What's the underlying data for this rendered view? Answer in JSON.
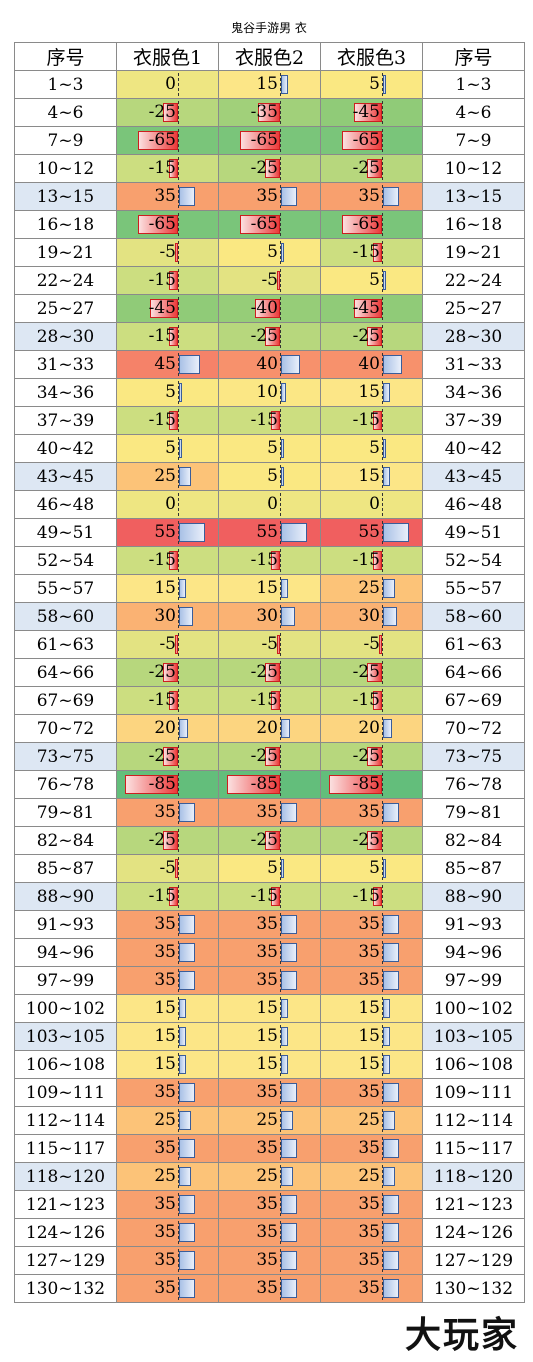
{
  "title": "鬼谷手游男 衣",
  "watermark": "大玩家",
  "headers": [
    "序号",
    "衣服色1",
    "衣服色2",
    "衣服色3",
    "序号"
  ],
  "colors": {
    "positive_bar": "#a9c1e6",
    "negative_bar": "#ec3a3a",
    "alt_row": "#dde7f3"
  },
  "rows": [
    {
      "range": "1~3",
      "v": [
        0,
        15,
        5
      ]
    },
    {
      "range": "4~6",
      "v": [
        -25,
        -35,
        -45
      ]
    },
    {
      "range": "7~9",
      "v": [
        -65,
        -65,
        -65
      ]
    },
    {
      "range": "10~12",
      "v": [
        -15,
        -25,
        -25
      ]
    },
    {
      "range": "13~15",
      "v": [
        35,
        35,
        35
      ]
    },
    {
      "range": "16~18",
      "v": [
        -65,
        -65,
        -65
      ]
    },
    {
      "range": "19~21",
      "v": [
        -5,
        5,
        -15
      ]
    },
    {
      "range": "22~24",
      "v": [
        -15,
        -5,
        5
      ]
    },
    {
      "range": "25~27",
      "v": [
        -45,
        -40,
        -45
      ]
    },
    {
      "range": "28~30",
      "v": [
        -15,
        -25,
        -25
      ]
    },
    {
      "range": "31~33",
      "v": [
        45,
        40,
        40
      ]
    },
    {
      "range": "34~36",
      "v": [
        5,
        10,
        15
      ]
    },
    {
      "range": "37~39",
      "v": [
        -15,
        -15,
        -15
      ]
    },
    {
      "range": "40~42",
      "v": [
        5,
        5,
        5
      ]
    },
    {
      "range": "43~45",
      "v": [
        25,
        5,
        15
      ]
    },
    {
      "range": "46~48",
      "v": [
        0,
        0,
        0
      ]
    },
    {
      "range": "49~51",
      "v": [
        55,
        55,
        55
      ]
    },
    {
      "range": "52~54",
      "v": [
        -15,
        -15,
        -15
      ]
    },
    {
      "range": "55~57",
      "v": [
        15,
        15,
        25
      ]
    },
    {
      "range": "58~60",
      "v": [
        30,
        30,
        30
      ]
    },
    {
      "range": "61~63",
      "v": [
        -5,
        -5,
        -5
      ]
    },
    {
      "range": "64~66",
      "v": [
        -25,
        -25,
        -25
      ]
    },
    {
      "range": "67~69",
      "v": [
        -15,
        -15,
        -15
      ]
    },
    {
      "range": "70~72",
      "v": [
        20,
        20,
        20
      ]
    },
    {
      "range": "73~75",
      "v": [
        -25,
        -25,
        -25
      ]
    },
    {
      "range": "76~78",
      "v": [
        -85,
        -85,
        -85
      ]
    },
    {
      "range": "79~81",
      "v": [
        35,
        35,
        35
      ]
    },
    {
      "range": "82~84",
      "v": [
        -25,
        -25,
        -25
      ]
    },
    {
      "range": "85~87",
      "v": [
        -5,
        5,
        5
      ]
    },
    {
      "range": "88~90",
      "v": [
        -15,
        -15,
        -15
      ]
    },
    {
      "range": "91~93",
      "v": [
        35,
        35,
        35
      ]
    },
    {
      "range": "94~96",
      "v": [
        35,
        35,
        35
      ]
    },
    {
      "range": "97~99",
      "v": [
        35,
        35,
        35
      ]
    },
    {
      "range": "100~102",
      "v": [
        15,
        15,
        15
      ]
    },
    {
      "range": "103~105",
      "v": [
        15,
        15,
        15
      ]
    },
    {
      "range": "106~108",
      "v": [
        15,
        15,
        15
      ]
    },
    {
      "range": "109~111",
      "v": [
        35,
        35,
        35
      ]
    },
    {
      "range": "112~114",
      "v": [
        25,
        25,
        25
      ]
    },
    {
      "range": "115~117",
      "v": [
        35,
        35,
        35
      ]
    },
    {
      "range": "118~120",
      "v": [
        25,
        25,
        25
      ]
    },
    {
      "range": "121~123",
      "v": [
        35,
        35,
        35
      ]
    },
    {
      "range": "124~126",
      "v": [
        35,
        35,
        35
      ]
    },
    {
      "range": "127~129",
      "v": [
        35,
        35,
        35
      ]
    },
    {
      "range": "130~132",
      "v": [
        35,
        35,
        35
      ]
    }
  ]
}
